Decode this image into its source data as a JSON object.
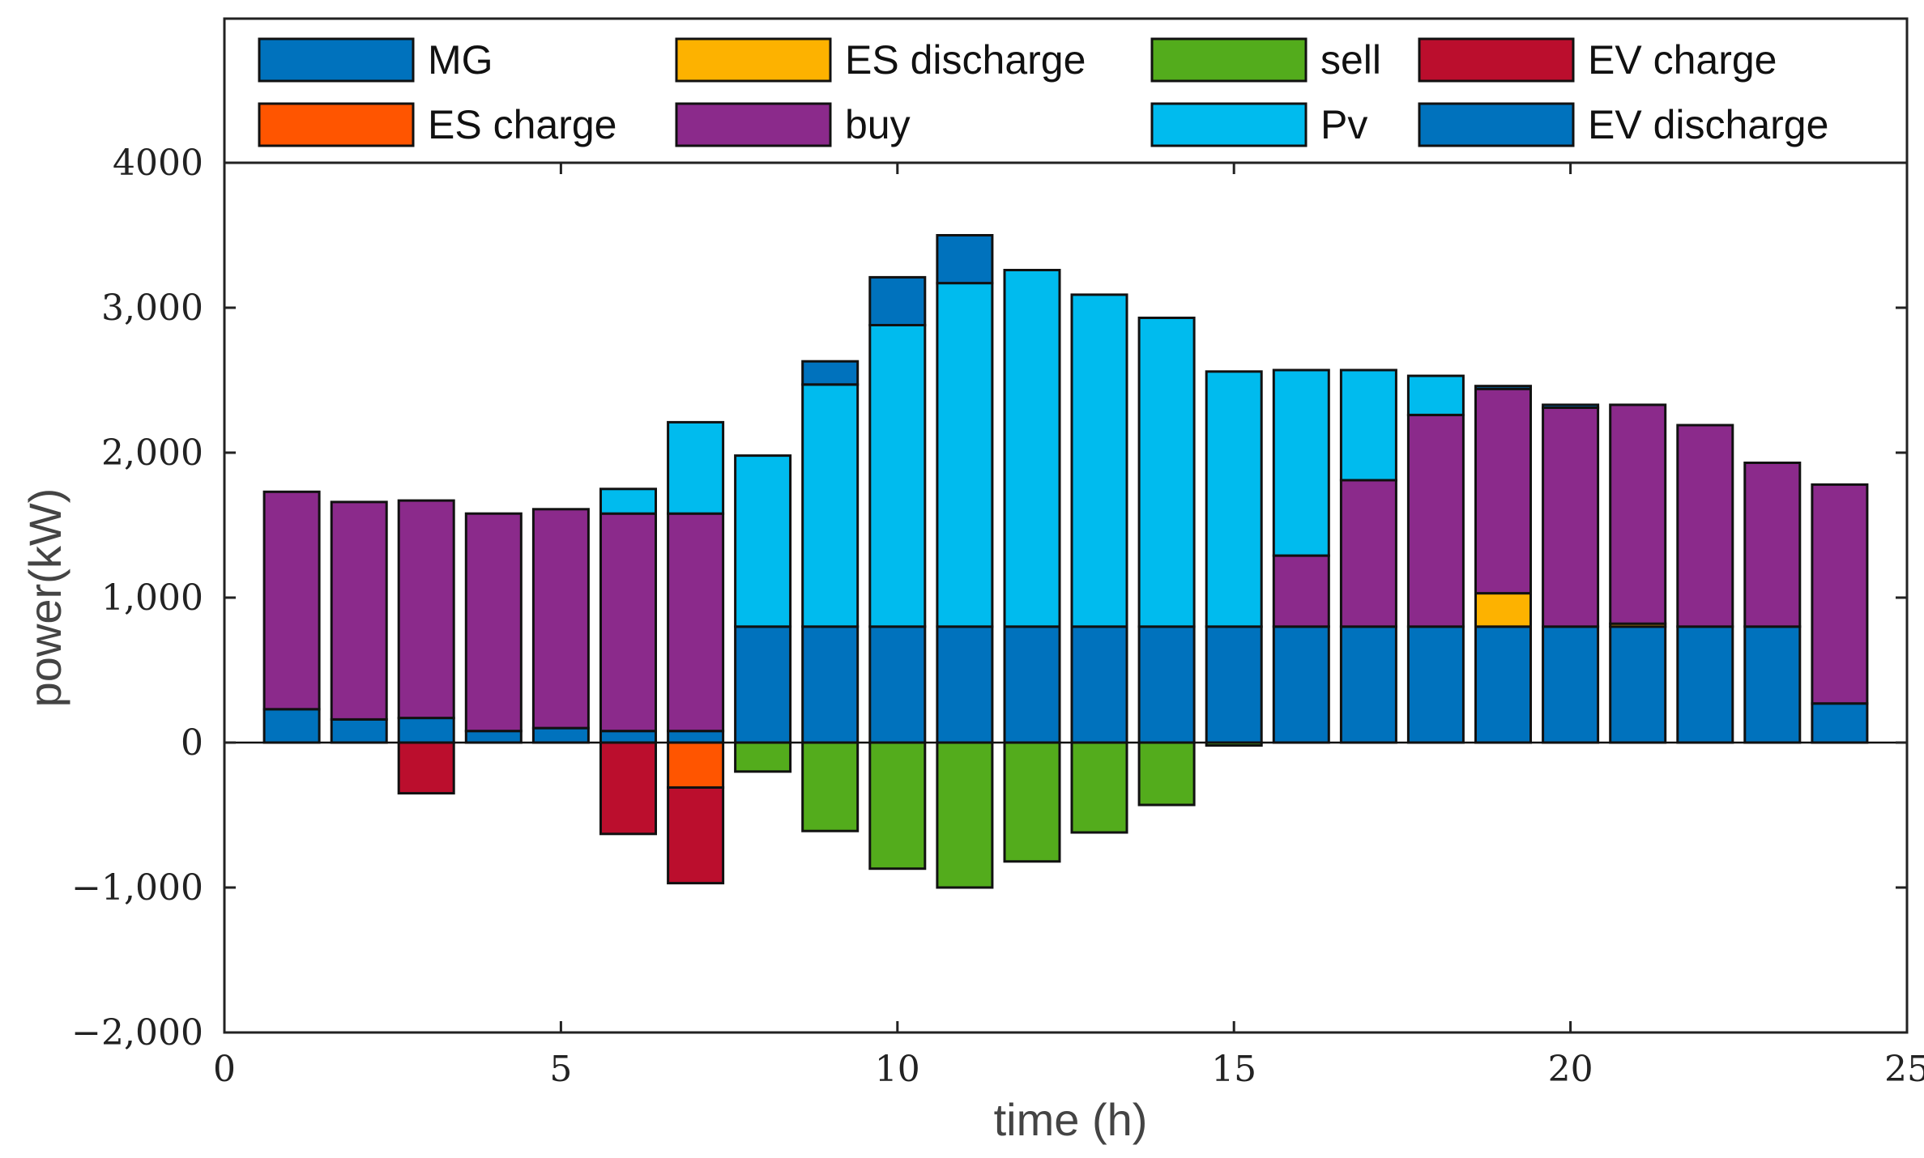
{
  "chart_data": {
    "type": "bar",
    "stacked": true,
    "xlabel": "time (h)",
    "ylabel": "power(kW)",
    "xlim": [
      0,
      25
    ],
    "ylim": [
      -2000,
      4000
    ],
    "x_ticks": [
      0,
      5,
      10,
      15,
      20,
      25
    ],
    "y_ticks": [
      -2000,
      -1000,
      0,
      1000,
      2000,
      3000,
      4000
    ],
    "y_tick_labels": [
      "−2,000",
      "−1,000",
      "0",
      "1,000",
      "2,000",
      "3,000",
      "4000"
    ],
    "grid": false,
    "legend_position": "top",
    "x": [
      1,
      2,
      3,
      4,
      5,
      6,
      7,
      8,
      9,
      10,
      11,
      12,
      13,
      14,
      15,
      16,
      17,
      18,
      19,
      20,
      21,
      22,
      23,
      24
    ],
    "series": [
      {
        "name": "MG",
        "color": "#0072BD",
        "values": [
          230,
          160,
          170,
          80,
          100,
          80,
          80,
          800,
          800,
          800,
          800,
          800,
          800,
          800,
          800,
          800,
          800,
          800,
          800,
          800,
          800,
          800,
          800,
          270
        ]
      },
      {
        "name": "ES charge",
        "color": "#FF5500",
        "values": [
          0,
          0,
          0,
          0,
          0,
          0,
          -310,
          0,
          0,
          0,
          0,
          0,
          0,
          0,
          0,
          0,
          0,
          0,
          0,
          0,
          0,
          0,
          0,
          0
        ]
      },
      {
        "name": "ES discharge",
        "color": "#FDB200",
        "values": [
          0,
          0,
          0,
          0,
          0,
          0,
          0,
          0,
          0,
          0,
          0,
          0,
          0,
          0,
          0,
          0,
          0,
          0,
          230,
          0,
          20,
          0,
          0,
          0
        ]
      },
      {
        "name": "buy",
        "color": "#8B2A8B",
        "values": [
          1500,
          1500,
          1500,
          1500,
          1510,
          1500,
          1500,
          0,
          0,
          0,
          0,
          0,
          0,
          0,
          0,
          490,
          1010,
          1460,
          1410,
          1510,
          1510,
          1390,
          1130,
          1510
        ]
      },
      {
        "name": "sell",
        "color": "#53AC1C",
        "values": [
          0,
          0,
          0,
          0,
          0,
          0,
          0,
          -200,
          -610,
          -870,
          -1000,
          -820,
          -620,
          -430,
          -20,
          0,
          0,
          0,
          0,
          0,
          0,
          0,
          0,
          0
        ]
      },
      {
        "name": "Pv",
        "color": "#00BBEE",
        "values": [
          0,
          0,
          0,
          0,
          0,
          170,
          630,
          1180,
          1670,
          2080,
          2370,
          2460,
          2290,
          2130,
          1760,
          1280,
          760,
          270,
          0,
          0,
          0,
          0,
          0,
          0
        ]
      },
      {
        "name": "EV charge",
        "color": "#BB0E2D",
        "values": [
          0,
          0,
          -350,
          0,
          0,
          -630,
          -660,
          0,
          0,
          0,
          0,
          0,
          0,
          0,
          0,
          0,
          0,
          0,
          0,
          0,
          0,
          0,
          0,
          0
        ]
      },
      {
        "name": "EV discharge",
        "color": "#0072BD",
        "values": [
          0,
          0,
          0,
          0,
          0,
          0,
          0,
          0,
          160,
          330,
          330,
          0,
          0,
          0,
          0,
          0,
          0,
          0,
          20,
          20,
          0,
          0,
          0,
          0
        ]
      }
    ]
  }
}
